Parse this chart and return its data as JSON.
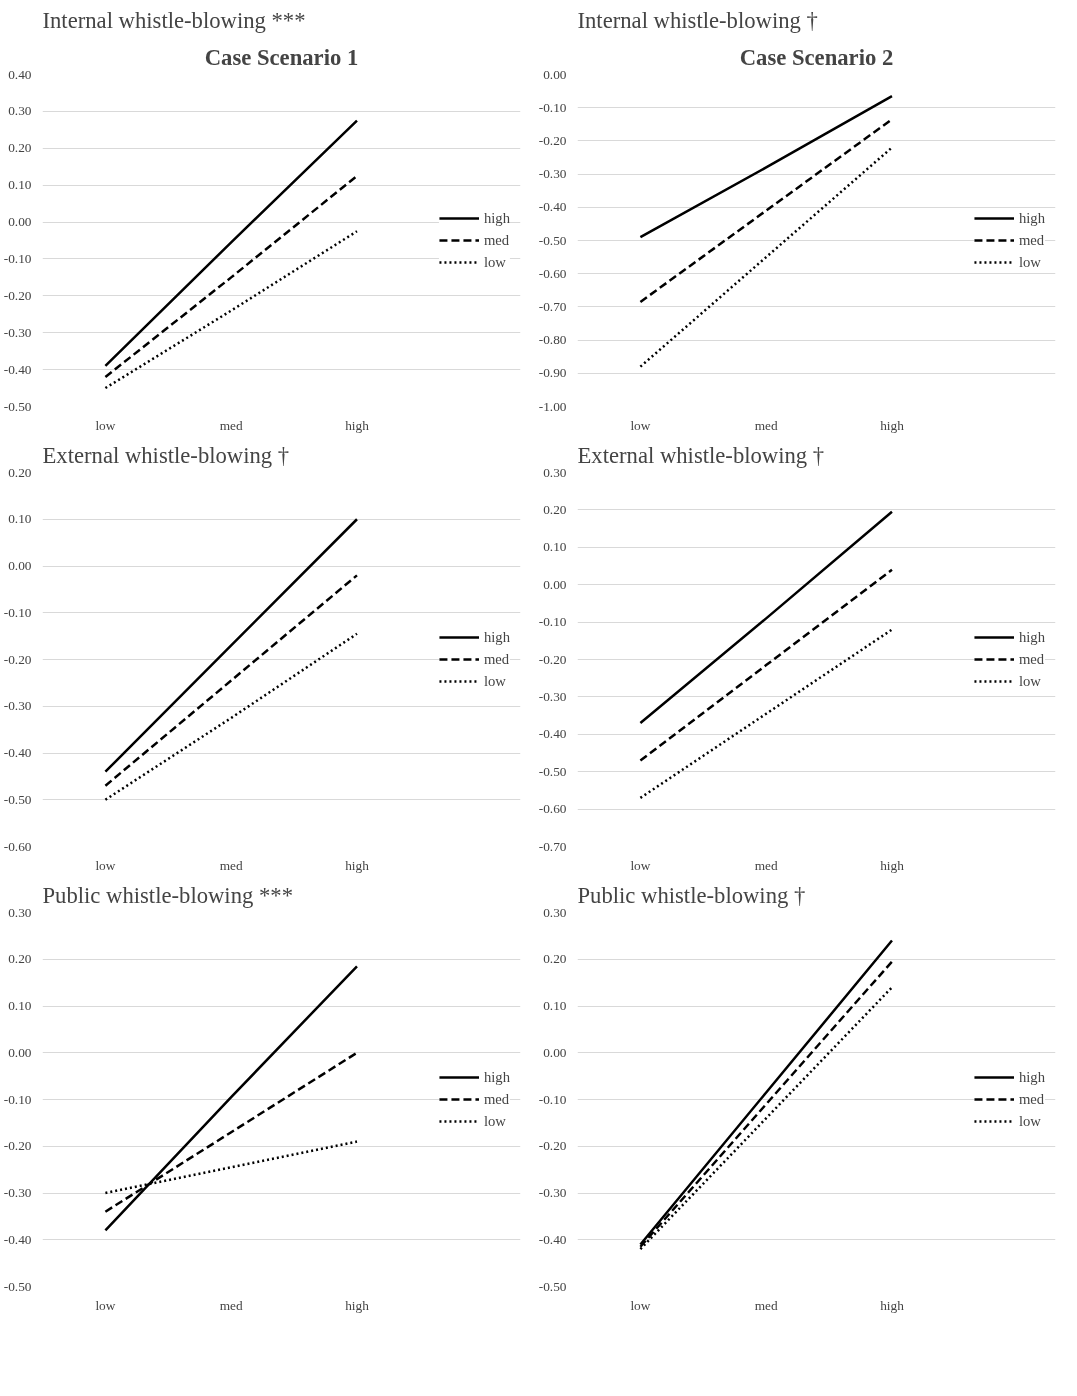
{
  "chart_data": [
    {
      "type": "line",
      "annotations": [
        "Case Scenario 1"
      ],
      "title": "Internal whistle-blowing ***",
      "categories": [
        "low",
        "med",
        "high"
      ],
      "ylim": [
        -0.5,
        0.4
      ],
      "yticks": [
        {
          "value": -0.5,
          "label": "-0.50"
        },
        {
          "value": -0.4,
          "label": "-0.40"
        },
        {
          "value": -0.3,
          "label": "-0.30"
        },
        {
          "value": -0.2,
          "label": "-0.20"
        },
        {
          "value": -0.1,
          "label": "-0.10"
        },
        {
          "value": 0,
          "label": "0.00"
        },
        {
          "value": 0.1,
          "label": "0.10"
        },
        {
          "value": 0.2,
          "label": "0.20"
        },
        {
          "value": 0.3,
          "label": "0.30"
        },
        {
          "value": 0.4,
          "label": "0.40"
        }
      ],
      "grid": "y",
      "legend": "right",
      "series": [
        {
          "name": "high",
          "color": "#000000",
          "line_style": "solid",
          "values": [
            -0.39,
            -0.055,
            0.275
          ]
        },
        {
          "name": "med",
          "color": "#000000",
          "line_style": "dashed",
          "values": [
            -0.42,
            -0.15,
            0.125
          ]
        },
        {
          "name": "low",
          "color": "#000000",
          "line_style": "dotted",
          "values": [
            -0.45,
            -0.24,
            -0.025
          ]
        }
      ]
    },
    {
      "type": "line",
      "annotations": [
        "Case Scenario 2"
      ],
      "title": "Internal whistle-blowing †",
      "categories": [
        "low",
        "med",
        "high"
      ],
      "ylim": [
        -1.0,
        0
      ],
      "yticks": [
        {
          "value": -1.0,
          "label": "-1.00"
        },
        {
          "value": -0.9,
          "label": "-0.90"
        },
        {
          "value": -0.8,
          "label": "-0.80"
        },
        {
          "value": -0.7,
          "label": "-0.70"
        },
        {
          "value": -0.6,
          "label": "-0.60"
        },
        {
          "value": -0.5,
          "label": "-0.50"
        },
        {
          "value": -0.4,
          "label": "-0.40"
        },
        {
          "value": -0.3,
          "label": "-0.30"
        },
        {
          "value": -0.2,
          "label": "-0.20"
        },
        {
          "value": -0.1,
          "label": "-0.10"
        },
        {
          "value": 0,
          "label": "0.00"
        }
      ],
      "grid": "y",
      "legend": "right",
      "series": [
        {
          "name": "high",
          "color": "#000000",
          "line_style": "solid",
          "values": [
            -0.49,
            -0.28,
            -0.065
          ]
        },
        {
          "name": "med",
          "color": "#000000",
          "line_style": "dashed",
          "values": [
            -0.685,
            -0.41,
            -0.135
          ]
        },
        {
          "name": "low",
          "color": "#000000",
          "line_style": "dotted",
          "values": [
            -0.88,
            -0.55,
            -0.22
          ]
        }
      ]
    },
    {
      "type": "line",
      "title": "External whistle-blowing †",
      "categories": [
        "low",
        "med",
        "high"
      ],
      "ylim": [
        -0.6,
        0.2
      ],
      "yticks": [
        {
          "value": -0.6,
          "label": "-0.60"
        },
        {
          "value": -0.5,
          "label": "-0.50"
        },
        {
          "value": -0.4,
          "label": "-0.40"
        },
        {
          "value": -0.3,
          "label": "-0.30"
        },
        {
          "value": -0.2,
          "label": "-0.20"
        },
        {
          "value": -0.1,
          "label": "-0.10"
        },
        {
          "value": 0,
          "label": "0.00"
        },
        {
          "value": 0.1,
          "label": "0.10"
        },
        {
          "value": 0.2,
          "label": "0.20"
        }
      ],
      "grid": "y",
      "legend": "right",
      "series": [
        {
          "name": "high",
          "color": "#000000",
          "line_style": "solid",
          "values": [
            -0.44,
            -0.17,
            0.1
          ]
        },
        {
          "name": "med",
          "color": "#000000",
          "line_style": "dashed",
          "values": [
            -0.47,
            -0.245,
            -0.02
          ]
        },
        {
          "name": "low",
          "color": "#000000",
          "line_style": "dotted",
          "values": [
            -0.5,
            -0.325,
            -0.145
          ]
        }
      ]
    },
    {
      "type": "line",
      "title": "External whistle-blowing †",
      "categories": [
        "low",
        "med",
        "high"
      ],
      "ylim": [
        -0.7,
        0.3
      ],
      "yticks": [
        {
          "value": -0.7,
          "label": "-0.70"
        },
        {
          "value": -0.6,
          "label": "-0.60"
        },
        {
          "value": -0.5,
          "label": "-0.50"
        },
        {
          "value": -0.4,
          "label": "-0.40"
        },
        {
          "value": -0.3,
          "label": "-0.30"
        },
        {
          "value": -0.2,
          "label": "-0.20"
        },
        {
          "value": -0.1,
          "label": "-0.10"
        },
        {
          "value": 0,
          "label": "0.00"
        },
        {
          "value": 0.1,
          "label": "0.10"
        },
        {
          "value": 0.2,
          "label": "0.20"
        },
        {
          "value": 0.3,
          "label": "0.30"
        }
      ],
      "grid": "y",
      "legend": "right",
      "series": [
        {
          "name": "high",
          "color": "#000000",
          "line_style": "solid",
          "values": [
            -0.37,
            -0.09,
            0.195
          ]
        },
        {
          "name": "med",
          "color": "#000000",
          "line_style": "dashed",
          "values": [
            -0.47,
            -0.215,
            0.04
          ]
        },
        {
          "name": "low",
          "color": "#000000",
          "line_style": "dotted",
          "values": [
            -0.57,
            -0.345,
            -0.12
          ]
        }
      ]
    },
    {
      "type": "line",
      "title": "Public whistle-blowing ***",
      "categories": [
        "low",
        "med",
        "high"
      ],
      "ylim": [
        -0.5,
        0.3
      ],
      "yticks": [
        {
          "value": -0.5,
          "label": "-0.50"
        },
        {
          "value": -0.4,
          "label": "-0.40"
        },
        {
          "value": -0.3,
          "label": "-0.30"
        },
        {
          "value": -0.2,
          "label": "-0.20"
        },
        {
          "value": -0.1,
          "label": "-0.10"
        },
        {
          "value": 0,
          "label": "0.00"
        },
        {
          "value": 0.1,
          "label": "0.10"
        },
        {
          "value": 0.2,
          "label": "0.20"
        },
        {
          "value": 0.3,
          "label": "0.30"
        }
      ],
      "grid": "y",
      "legend": "right",
      "series": [
        {
          "name": "high",
          "color": "#000000",
          "line_style": "solid",
          "values": [
            -0.38,
            -0.095,
            0.185
          ]
        },
        {
          "name": "med",
          "color": "#000000",
          "line_style": "dashed",
          "values": [
            -0.34,
            -0.17,
            0.0
          ]
        },
        {
          "name": "low",
          "color": "#000000",
          "line_style": "dotted",
          "values": [
            -0.3,
            -0.245,
            -0.19
          ]
        }
      ]
    },
    {
      "type": "line",
      "title": "Public whistle-blowing †",
      "categories": [
        "low",
        "med",
        "high"
      ],
      "ylim": [
        -0.5,
        0.3
      ],
      "yticks": [
        {
          "value": -0.5,
          "label": "-0.50"
        },
        {
          "value": -0.4,
          "label": "-0.40"
        },
        {
          "value": -0.3,
          "label": "-0.30"
        },
        {
          "value": -0.2,
          "label": "-0.20"
        },
        {
          "value": -0.1,
          "label": "-0.10"
        },
        {
          "value": 0,
          "label": "0.00"
        },
        {
          "value": 0.1,
          "label": "0.10"
        },
        {
          "value": 0.2,
          "label": "0.20"
        },
        {
          "value": 0.3,
          "label": "0.30"
        }
      ],
      "grid": "y",
      "legend": "right",
      "series": [
        {
          "name": "high",
          "color": "#000000",
          "line_style": "solid",
          "values": [
            -0.41,
            -0.085,
            0.24
          ]
        },
        {
          "name": "med",
          "color": "#000000",
          "line_style": "dashed",
          "values": [
            -0.415,
            -0.11,
            0.195
          ]
        },
        {
          "name": "low",
          "color": "#000000",
          "line_style": "dotted",
          "values": [
            -0.42,
            -0.14,
            0.14
          ]
        }
      ]
    }
  ]
}
